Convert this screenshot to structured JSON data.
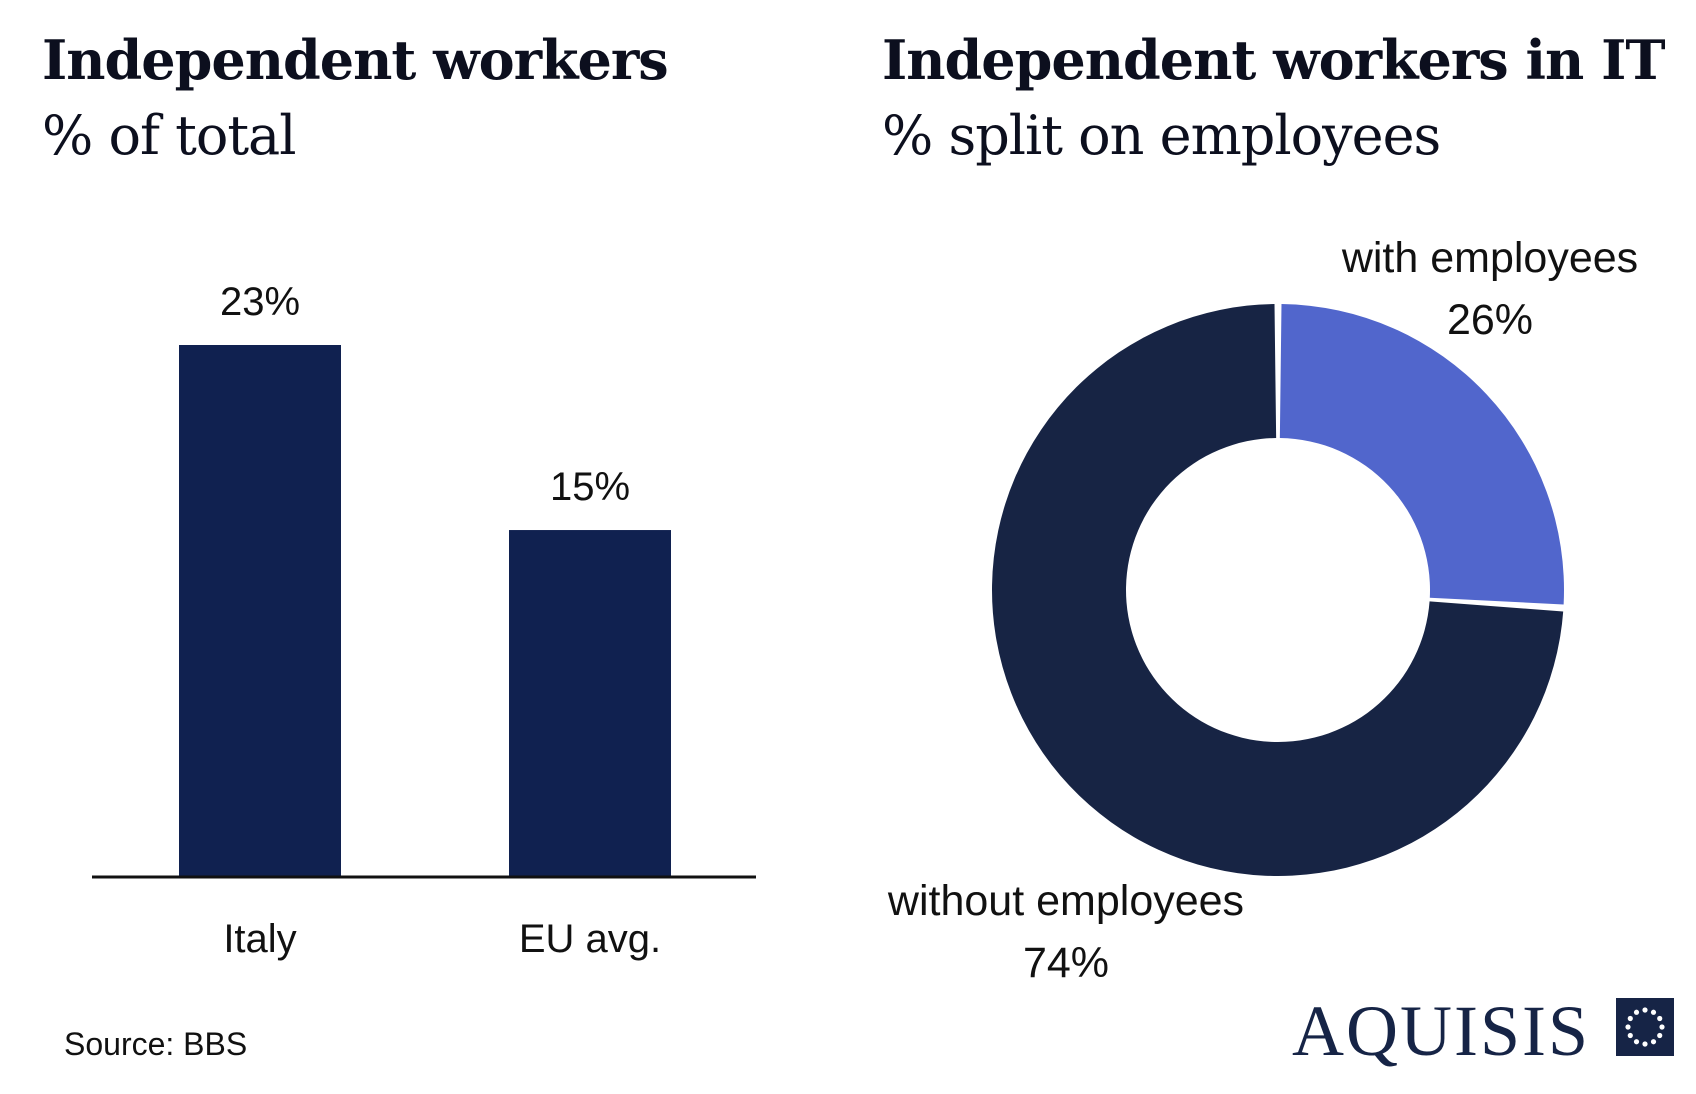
{
  "chart_data": [
    {
      "type": "bar",
      "title": "Independent workers",
      "subtitle": "% of total",
      "categories": [
        "Italy",
        "EU avg."
      ],
      "values": [
        23,
        15
      ],
      "data_labels": [
        "23%",
        "15%"
      ],
      "ylim": [
        0,
        25
      ],
      "grid": false,
      "bar_color": "#102150"
    },
    {
      "type": "pie",
      "title": "Independent workers  in IT",
      "subtitle": "% split on employees",
      "donut": true,
      "slices": [
        {
          "label": "with employees",
          "value": 26,
          "value_label": "26%",
          "color": "#5166cc"
        },
        {
          "label": "without employees",
          "value": 74,
          "value_label": "74%",
          "color": "#172444"
        }
      ]
    }
  ],
  "footer": {
    "source": "Source: BBS",
    "logo_text": "AQUISIS",
    "logo_icon": "circle-of-stars-icon",
    "logo_color": "#162446"
  }
}
